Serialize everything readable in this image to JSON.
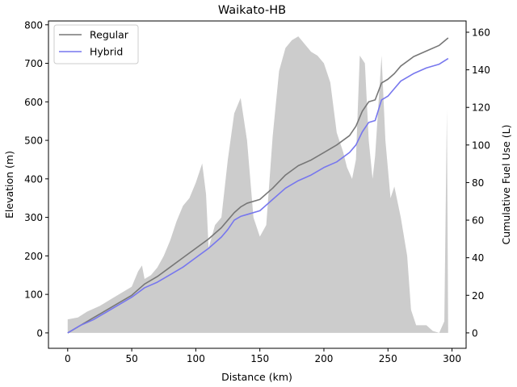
{
  "chart_data": {
    "type": "line",
    "title": "Waikato-HB",
    "xlabel": "Distance (km)",
    "ylabel_left": "Elevation (m)",
    "ylabel_right": "Cumulative Fuel Use (L)",
    "xlim": [
      -15,
      311
    ],
    "ylim_left": [
      -40,
      810
    ],
    "ylim_right": [
      -8.2,
      166
    ],
    "x_ticks": [
      0,
      50,
      100,
      150,
      200,
      250,
      300
    ],
    "y_left_ticks": [
      0,
      100,
      200,
      300,
      400,
      500,
      600,
      700,
      800
    ],
    "y_right_ticks": [
      0,
      20,
      40,
      60,
      80,
      100,
      120,
      140,
      160
    ],
    "grid": false,
    "legend_position": "top-left",
    "elevation": {
      "color": "#cccccc",
      "x": [
        0,
        8,
        15,
        25,
        35,
        45,
        50,
        55,
        58,
        60,
        65,
        70,
        75,
        80,
        85,
        90,
        95,
        100,
        105,
        108,
        110,
        115,
        120,
        125,
        130,
        135,
        140,
        145,
        150,
        155,
        160,
        165,
        170,
        175,
        180,
        185,
        190,
        195,
        200,
        205,
        210,
        215,
        218,
        222,
        225,
        228,
        232,
        235,
        238,
        240,
        245,
        248,
        252,
        255,
        260,
        265,
        268,
        272,
        280,
        285,
        290,
        294,
        296,
        297
      ],
      "y": [
        35,
        40,
        55,
        70,
        90,
        110,
        120,
        160,
        175,
        140,
        150,
        170,
        200,
        240,
        290,
        330,
        350,
        390,
        440,
        360,
        220,
        280,
        300,
        450,
        570,
        610,
        500,
        300,
        250,
        280,
        510,
        680,
        740,
        760,
        770,
        750,
        730,
        720,
        700,
        650,
        520,
        470,
        430,
        400,
        450,
        720,
        700,
        500,
        400,
        460,
        720,
        500,
        350,
        380,
        300,
        200,
        60,
        20,
        20,
        5,
        0,
        30,
        580,
        0
      ]
    },
    "series": [
      {
        "name": "Regular",
        "color": "#777777",
        "x": [
          0,
          10,
          20,
          30,
          40,
          50,
          60,
          70,
          80,
          90,
          100,
          110,
          120,
          125,
          130,
          135,
          140,
          150,
          160,
          170,
          180,
          190,
          200,
          210,
          220,
          225,
          230,
          235,
          240,
          245,
          250,
          255,
          260,
          270,
          280,
          290,
          297
        ],
        "y": [
          0,
          4,
          8,
          12,
          16,
          20,
          26,
          30,
          35,
          40,
          45,
          50,
          56,
          60,
          64,
          67,
          69,
          71,
          77,
          84,
          89,
          92,
          96,
          100,
          105,
          110,
          118,
          123,
          124,
          133,
          135,
          138,
          142,
          147,
          150,
          153,
          157
        ]
      },
      {
        "name": "Hybrid",
        "color": "#7777ee",
        "x": [
          0,
          10,
          20,
          30,
          40,
          50,
          60,
          70,
          80,
          90,
          100,
          110,
          120,
          125,
          130,
          135,
          140,
          150,
          160,
          170,
          180,
          190,
          200,
          210,
          220,
          225,
          230,
          235,
          240,
          245,
          250,
          255,
          260,
          270,
          280,
          290,
          297
        ],
        "y": [
          0,
          4,
          7,
          11,
          15,
          19,
          24,
          27,
          31,
          35,
          40,
          45,
          51,
          55,
          60,
          62,
          63,
          65,
          71,
          77,
          81,
          84,
          88,
          91,
          96,
          100,
          107,
          112,
          113,
          124,
          126,
          130,
          134,
          138,
          141,
          143,
          146
        ]
      }
    ]
  }
}
